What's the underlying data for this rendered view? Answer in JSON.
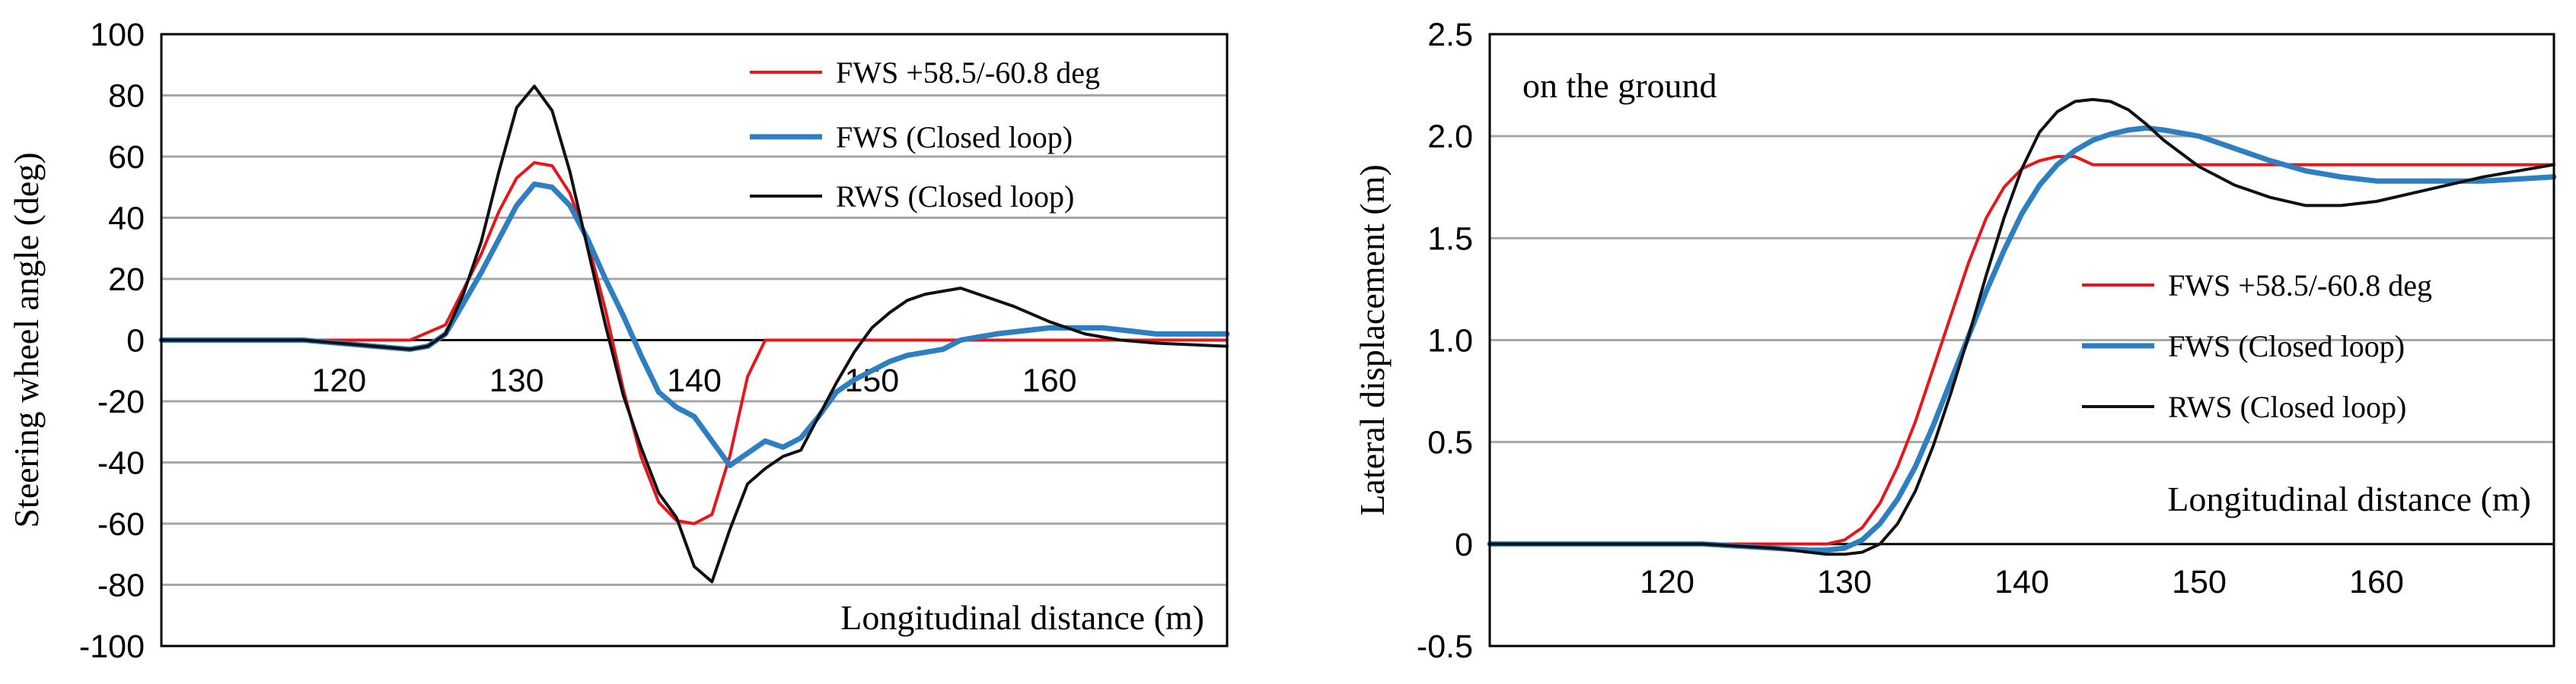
{
  "chart_data": [
    {
      "type": "line",
      "xlabel": "Longitudinal distance (m)",
      "ylabel": "Steering wheel angle (deg)",
      "xlim": [
        110,
        170
      ],
      "ylim": [
        -100,
        100
      ],
      "xticks": [
        120,
        130,
        140,
        150,
        160
      ],
      "yticks": [
        100,
        80,
        60,
        40,
        20,
        0,
        -20,
        -40,
        -60,
        -80,
        -100
      ],
      "grid": "horizontal",
      "legend_position": "top-right",
      "series": [
        {
          "name": "FWS  +58.5/-60.8 deg",
          "color": "#e8161b",
          "width": 4,
          "x": [
            110,
            124,
            126,
            128,
            129,
            130,
            131,
            132,
            133,
            134,
            135,
            136,
            137,
            138,
            139,
            140,
            141,
            142,
            143,
            144,
            145,
            170
          ],
          "y": [
            0,
            0,
            5,
            28,
            42,
            53,
            58,
            57,
            48,
            32,
            10,
            -16,
            -38,
            -53,
            -59,
            -60,
            -57,
            -38,
            -12,
            0,
            0,
            0
          ]
        },
        {
          "name": "FWS (Closed loop)",
          "color": "#2e7fc1",
          "width": 7,
          "x": [
            110,
            118,
            120,
            122,
            124,
            125,
            126,
            127,
            128,
            129,
            130,
            131,
            132,
            133,
            134,
            135,
            136,
            137,
            138,
            139,
            140,
            141,
            142,
            143,
            144,
            145,
            146,
            147,
            148,
            149,
            150,
            151,
            152,
            153,
            154,
            155,
            157,
            160,
            163,
            166,
            170
          ],
          "y": [
            0,
            0,
            -1,
            -2,
            -3,
            -2,
            2,
            12,
            22,
            33,
            44,
            51,
            50,
            44,
            33,
            20,
            8,
            -5,
            -17,
            -22,
            -25,
            -33,
            -41,
            -37,
            -33,
            -35,
            -32,
            -25,
            -17,
            -13,
            -10,
            -7,
            -5,
            -4,
            -3,
            0,
            2,
            4,
            4,
            2,
            2
          ]
        },
        {
          "name": "RWS (Closed loop)",
          "color": "#111111",
          "width": 4,
          "x": [
            110,
            118,
            120,
            122,
            124,
            125,
            126,
            127,
            128,
            129,
            130,
            131,
            132,
            133,
            134,
            135,
            136,
            137,
            138,
            139,
            140,
            141,
            142,
            143,
            144,
            145,
            146,
            147,
            148,
            149,
            150,
            151,
            152,
            153,
            154,
            155,
            156,
            158,
            160,
            162,
            164,
            166,
            170
          ],
          "y": [
            0,
            0,
            -1,
            -2,
            -3,
            -2,
            2,
            15,
            32,
            55,
            76,
            83,
            75,
            55,
            30,
            5,
            -18,
            -35,
            -50,
            -58,
            -74,
            -79,
            -62,
            -47,
            -42,
            -38,
            -36,
            -25,
            -14,
            -4,
            4,
            9,
            13,
            15,
            16,
            17,
            15,
            11,
            6,
            2,
            0,
            -1,
            -2
          ]
        }
      ]
    },
    {
      "type": "line",
      "xlabel": "Longitudinal distance (m)",
      "ylabel": "Lateral displacement (m)",
      "annotation": "on the ground",
      "xlim": [
        110,
        170
      ],
      "ylim": [
        -0.5,
        2.5
      ],
      "xticks": [
        120,
        130,
        140,
        150,
        160
      ],
      "yticks": [
        "2.5",
        "2.0",
        "1.5",
        "1.0",
        "0.5",
        "0",
        "-0.5"
      ],
      "grid": "horizontal",
      "legend_position": "center-right",
      "series": [
        {
          "name": "FWS  +58.5/-60.8 deg",
          "color": "#e8161b",
          "width": 4,
          "x": [
            110,
            128,
            129,
            130,
            131,
            132,
            133,
            134,
            135,
            136,
            137,
            138,
            139,
            140,
            141,
            142,
            143,
            144,
            170
          ],
          "y": [
            0,
            0,
            0,
            0.02,
            0.08,
            0.2,
            0.38,
            0.6,
            0.86,
            1.12,
            1.38,
            1.6,
            1.75,
            1.84,
            1.88,
            1.9,
            1.9,
            1.86,
            1.86
          ]
        },
        {
          "name": "FWS (Closed loop)",
          "color": "#2e7fc1",
          "width": 7,
          "x": [
            110,
            122,
            126,
            128,
            129,
            130,
            131,
            132,
            133,
            134,
            135,
            136,
            137,
            138,
            139,
            140,
            141,
            142,
            143,
            144,
            145,
            146,
            147,
            148,
            150,
            152,
            154,
            156,
            158,
            160,
            163,
            166,
            170
          ],
          "y": [
            0,
            0,
            -0.02,
            -0.03,
            -0.03,
            -0.02,
            0.02,
            0.1,
            0.22,
            0.38,
            0.58,
            0.8,
            1.02,
            1.24,
            1.44,
            1.62,
            1.76,
            1.86,
            1.93,
            1.98,
            2.01,
            2.03,
            2.04,
            2.03,
            2.0,
            1.94,
            1.88,
            1.83,
            1.8,
            1.78,
            1.78,
            1.78,
            1.8
          ]
        },
        {
          "name": "RWS (Closed loop)",
          "color": "#111111",
          "width": 4,
          "x": [
            110,
            122,
            126,
            128,
            129,
            130,
            131,
            132,
            133,
            134,
            135,
            136,
            137,
            138,
            139,
            140,
            141,
            142,
            143,
            144,
            145,
            146,
            147,
            148,
            150,
            152,
            154,
            156,
            158,
            160,
            163,
            166,
            170
          ],
          "y": [
            0,
            0,
            -0.02,
            -0.04,
            -0.05,
            -0.05,
            -0.04,
            0.0,
            0.1,
            0.26,
            0.48,
            0.74,
            1.02,
            1.32,
            1.6,
            1.84,
            2.02,
            2.12,
            2.17,
            2.18,
            2.17,
            2.13,
            2.06,
            1.98,
            1.85,
            1.76,
            1.7,
            1.66,
            1.66,
            1.68,
            1.74,
            1.8,
            1.86
          ]
        }
      ]
    }
  ]
}
